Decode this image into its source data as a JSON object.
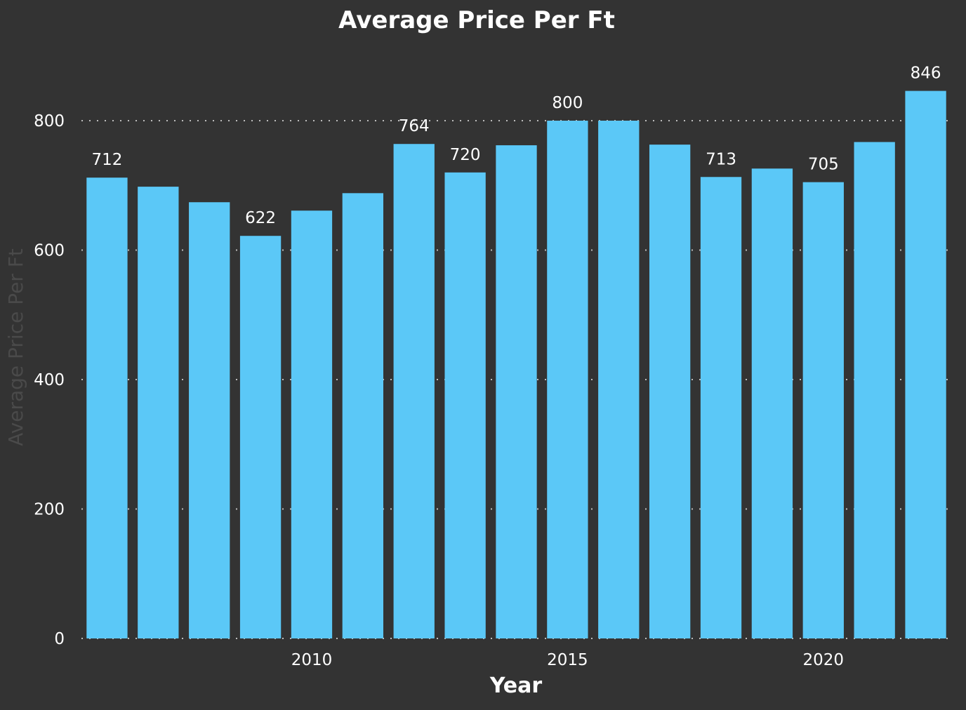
{
  "chart_data": {
    "type": "bar",
    "title": "Average Price Per Ft",
    "xlabel": "Year",
    "ylabel": "Average Price Per Ft",
    "categories": [
      2006,
      2007,
      2008,
      2009,
      2010,
      2011,
      2012,
      2013,
      2014,
      2015,
      2016,
      2017,
      2018,
      2019,
      2020,
      2021,
      2022
    ],
    "values": [
      712,
      698,
      674,
      622,
      661,
      688,
      764,
      720,
      762,
      800,
      800,
      763,
      713,
      726,
      705,
      767,
      846
    ],
    "data_labels": [
      "712",
      "",
      "",
      "622",
      "",
      "",
      "764",
      "720",
      "",
      "800",
      "",
      "",
      "713",
      "",
      "705",
      "",
      "846"
    ],
    "x_ticks": [
      2010,
      2015,
      2020
    ],
    "y_ticks": [
      0,
      200,
      400,
      600,
      800
    ],
    "ylim": [
      0,
      1000
    ],
    "grid": true,
    "colors": {
      "bar": "#5bc8f7",
      "background": "#333333",
      "text": "#ffffff",
      "axis_title": "#4a4a4a",
      "grid": "#bdbdbd"
    }
  }
}
